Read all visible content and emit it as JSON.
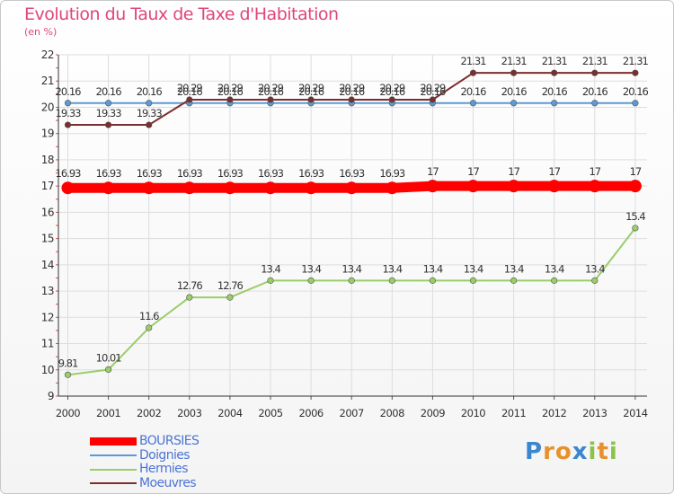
{
  "title": "Evolution du Taux de Taxe d'Habitation",
  "unit_label": "(en %)",
  "logo": {
    "text": "Proxiti",
    "letters": [
      "P",
      "r",
      "o",
      "x",
      "i",
      "t",
      "i"
    ],
    "colors": [
      "#3a86cf",
      "#e8912c",
      "#e8912c",
      "#3a86cf",
      "#8bc34a",
      "#e8912c",
      "#8bc34a"
    ]
  },
  "chart_data": {
    "type": "line",
    "title": "Evolution du Taux de Taxe d'Habitation",
    "ylabel": "(en %)",
    "xlabel": "",
    "ylim": [
      9,
      22
    ],
    "yticks": [
      9,
      10,
      11,
      12,
      13,
      14,
      15,
      16,
      17,
      18,
      19,
      20,
      21,
      22
    ],
    "grid": true,
    "x": [
      "2000",
      "2001",
      "2002",
      "2003",
      "2004",
      "2005",
      "2006",
      "2007",
      "2008",
      "2009",
      "2010",
      "2011",
      "2012",
      "2013",
      "2014"
    ],
    "series": [
      {
        "name": "BOURSIES",
        "color": "#ff0000",
        "emphasis": true,
        "values": [
          16.93,
          16.93,
          16.93,
          16.93,
          16.93,
          16.93,
          16.93,
          16.93,
          16.93,
          17,
          17,
          17,
          17,
          17,
          17
        ],
        "labels": [
          "16.93",
          "16.93",
          "16.93",
          "16.93",
          "16.93",
          "16.93",
          "16.93",
          "16.93",
          "16.93",
          "17",
          "17",
          "17",
          "17",
          "17",
          "17"
        ]
      },
      {
        "name": "Doignies",
        "color": "#5b9bd5",
        "emphasis": false,
        "values": [
          20.16,
          20.16,
          20.16,
          20.16,
          20.16,
          20.16,
          20.16,
          20.16,
          20.16,
          20.16,
          20.16,
          20.16,
          20.16,
          20.16,
          20.16
        ],
        "labels": [
          "20.16",
          "20.16",
          "20.16",
          "20.16",
          "20.16",
          "20.16",
          "20.16",
          "20.16",
          "20.16",
          "20.16",
          "20.16",
          "20.16",
          "20.16",
          "20.16",
          "20.16"
        ]
      },
      {
        "name": "Hermies",
        "color": "#9acd69",
        "emphasis": false,
        "values": [
          9.81,
          10.01,
          11.6,
          12.76,
          12.76,
          13.4,
          13.4,
          13.4,
          13.4,
          13.4,
          13.4,
          13.4,
          13.4,
          13.4,
          15.4
        ],
        "labels": [
          "9.81",
          "10.01",
          "11.6",
          "12.76",
          "12.76",
          "13.4",
          "13.4",
          "13.4",
          "13.4",
          "13.4",
          "13.4",
          "13.4",
          "13.4",
          "13.4",
          "15.4"
        ]
      },
      {
        "name": "Moeuvres",
        "color": "#7b2e2e",
        "emphasis": false,
        "values": [
          19.33,
          19.33,
          19.33,
          20.29,
          20.29,
          20.29,
          20.29,
          20.29,
          20.29,
          20.29,
          21.31,
          21.31,
          21.31,
          21.31,
          21.31
        ],
        "labels": [
          "19.33",
          "19.33",
          "19.33",
          "20.29",
          "20.29",
          "20.29",
          "20.29",
          "20.29",
          "20.29",
          "20.29",
          "21.31",
          "21.31",
          "21.31",
          "21.31",
          "21.31"
        ]
      }
    ]
  }
}
